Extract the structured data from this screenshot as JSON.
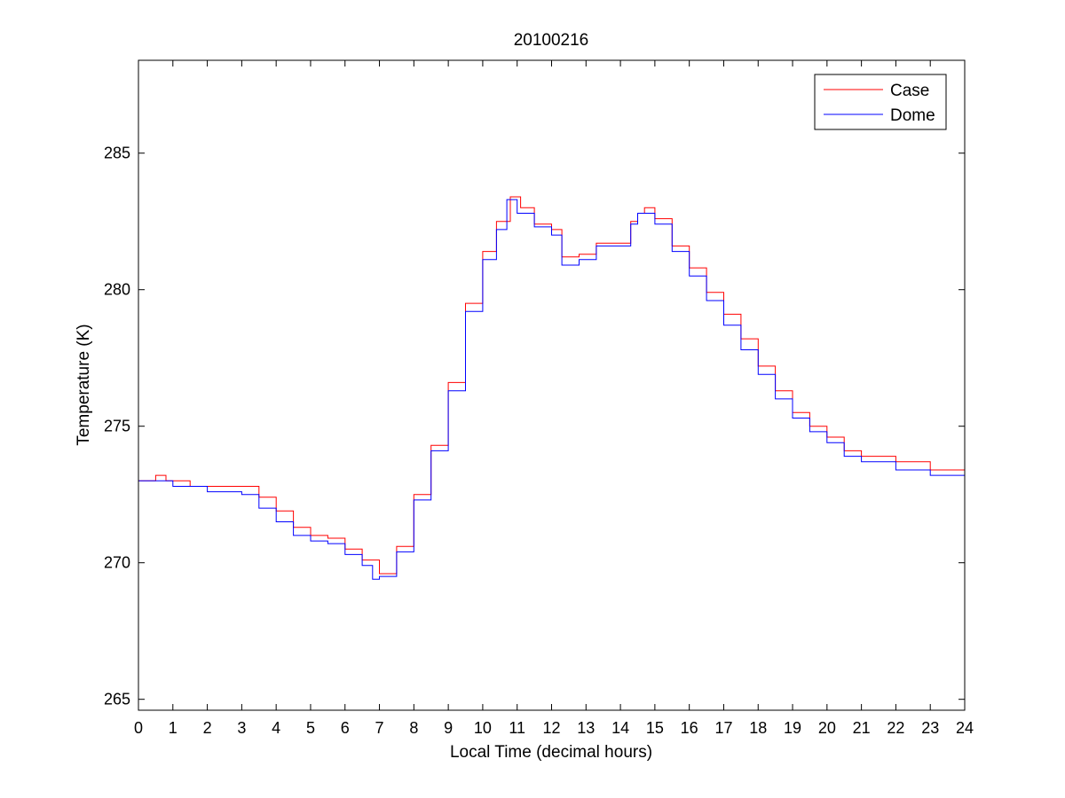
{
  "chart_data": {
    "type": "line",
    "title": "20100216",
    "xlabel": "Local Time (decimal hours)",
    "ylabel": "Temperature (K)",
    "xlim": [
      0,
      24
    ],
    "ylim": [
      264.6,
      288.4
    ],
    "xticks": [
      0,
      1,
      2,
      3,
      4,
      5,
      6,
      7,
      8,
      9,
      10,
      11,
      12,
      13,
      14,
      15,
      16,
      17,
      18,
      19,
      20,
      21,
      22,
      23,
      24
    ],
    "yticks": [
      265,
      270,
      275,
      280,
      285
    ],
    "xtick_labels": [
      "0",
      "1",
      "2",
      "3",
      "4",
      "5",
      "6",
      "7",
      "8",
      "9",
      "10",
      "11",
      "12",
      "13",
      "14",
      "15",
      "16",
      "17",
      "18",
      "19",
      "20",
      "21",
      "22",
      "23",
      "24"
    ],
    "ytick_labels": [
      "265",
      "270",
      "275",
      "280",
      "285"
    ],
    "grid": false,
    "legend_position": "top-right",
    "series": [
      {
        "name": "Case",
        "color": "#ff0000",
        "x": [
          0,
          0.5,
          0.8,
          1.5,
          3.1,
          3.5,
          4.0,
          4.5,
          5.0,
          5.5,
          6.0,
          6.5,
          7.0,
          7.5,
          8.0,
          8.5,
          9.0,
          9.5,
          10.0,
          10.4,
          10.8,
          11.1,
          11.5,
          12.0,
          12.3,
          12.8,
          13.3,
          14.0,
          14.3,
          14.5,
          14.7,
          15.0,
          15.5,
          16.0,
          16.5,
          17.0,
          17.5,
          18.0,
          18.5,
          19.0,
          19.5,
          20.0,
          20.5,
          21.0,
          22.0,
          23.0,
          24.0
        ],
        "y": [
          273.0,
          273.2,
          273.0,
          272.8,
          272.8,
          272.4,
          271.9,
          271.3,
          271.0,
          270.9,
          270.5,
          270.1,
          269.6,
          270.6,
          272.5,
          274.3,
          276.6,
          279.5,
          281.4,
          282.5,
          283.4,
          283.0,
          282.4,
          282.2,
          281.2,
          281.3,
          281.7,
          281.7,
          282.5,
          282.8,
          283.0,
          282.6,
          281.6,
          280.8,
          279.9,
          279.1,
          278.2,
          277.2,
          276.3,
          275.5,
          275.0,
          274.6,
          274.1,
          273.9,
          273.7,
          273.4,
          273.2
        ]
      },
      {
        "name": "Dome",
        "color": "#0000ff",
        "x": [
          0,
          1.0,
          2.0,
          3.0,
          3.5,
          4.0,
          4.5,
          5.0,
          5.5,
          6.0,
          6.5,
          6.8,
          7.0,
          7.5,
          8.0,
          8.5,
          9.0,
          9.5,
          10.0,
          10.4,
          10.7,
          11.0,
          11.5,
          12.0,
          12.3,
          12.8,
          13.3,
          14.0,
          14.3,
          14.5,
          14.7,
          15.0,
          15.5,
          16.0,
          16.5,
          17.0,
          17.5,
          18.0,
          18.5,
          19.0,
          19.5,
          20.0,
          20.5,
          21.0,
          22.0,
          23.0,
          24.0
        ],
        "y": [
          273.0,
          272.8,
          272.6,
          272.5,
          272.0,
          271.5,
          271.0,
          270.8,
          270.7,
          270.3,
          269.9,
          269.4,
          269.5,
          270.4,
          272.3,
          274.1,
          276.3,
          279.2,
          281.1,
          282.2,
          283.3,
          282.8,
          282.3,
          282.0,
          280.9,
          281.1,
          281.6,
          281.6,
          282.4,
          282.8,
          282.8,
          282.4,
          281.4,
          280.5,
          279.6,
          278.7,
          277.8,
          276.9,
          276.0,
          275.3,
          274.8,
          274.4,
          273.9,
          273.7,
          273.4,
          273.2,
          273.1
        ]
      }
    ]
  }
}
